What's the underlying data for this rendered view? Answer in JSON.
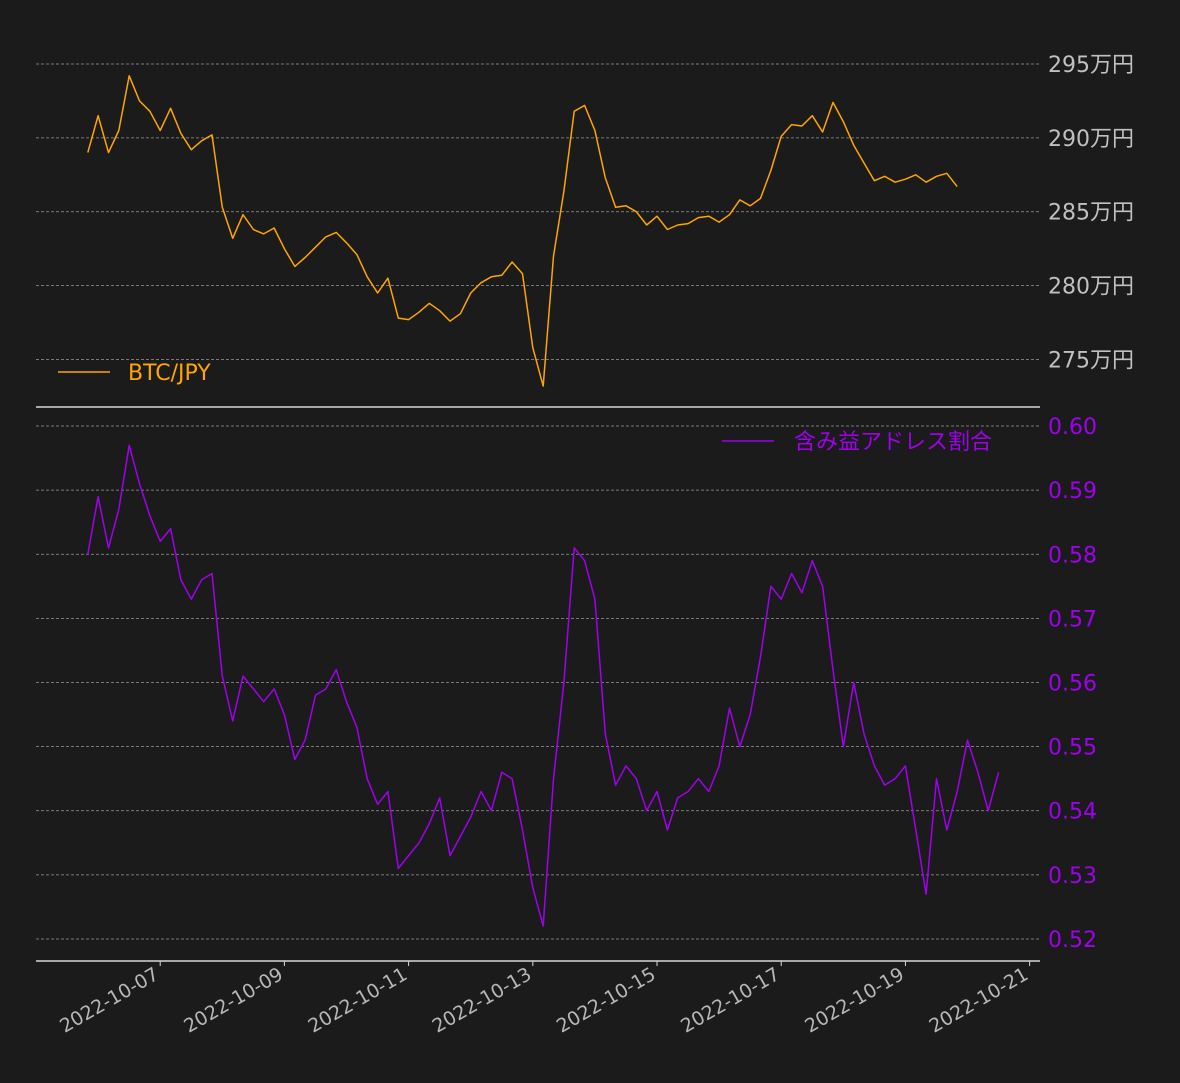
{
  "colors": {
    "background": "#1b1b1b",
    "btc_line": "#ffa500",
    "ratio_line": "#a000ee",
    "top_tick_text": "#c0c0c0",
    "bottom_tick_text": "#a000ee",
    "grid": "#9a9a9a",
    "axis": "#d8d8d8"
  },
  "chart_data": [
    {
      "type": "line",
      "panel": "top",
      "title": "",
      "ylabel": "",
      "ylim": [
        272.8,
        297.3
      ],
      "y_ticks": [
        275,
        280,
        285,
        290,
        295
      ],
      "y_tick_labels": [
        "275万円",
        "280万円",
        "285万円",
        "290万円",
        "295万円"
      ],
      "grid": true,
      "legend_position": "bottom-left",
      "series": [
        {
          "name": "BTC/JPY",
          "color": "#ffa500",
          "x": [
            "2022-10-05 20:00",
            "2022-10-06 00:00",
            "2022-10-06 04:00",
            "2022-10-06 08:00",
            "2022-10-06 12:00",
            "2022-10-06 16:00",
            "2022-10-06 20:00",
            "2022-10-07 00:00",
            "2022-10-07 04:00",
            "2022-10-07 08:00",
            "2022-10-07 12:00",
            "2022-10-07 16:00",
            "2022-10-07 20:00",
            "2022-10-08 00:00",
            "2022-10-08 04:00",
            "2022-10-08 08:00",
            "2022-10-08 12:00",
            "2022-10-08 16:00",
            "2022-10-08 20:00",
            "2022-10-09 00:00",
            "2022-10-09 04:00",
            "2022-10-09 08:00",
            "2022-10-09 12:00",
            "2022-10-09 16:00",
            "2022-10-09 20:00",
            "2022-10-10 00:00",
            "2022-10-10 04:00",
            "2022-10-10 08:00",
            "2022-10-10 12:00",
            "2022-10-10 16:00",
            "2022-10-10 20:00",
            "2022-10-11 00:00",
            "2022-10-11 04:00",
            "2022-10-11 08:00",
            "2022-10-11 12:00",
            "2022-10-11 16:00",
            "2022-10-11 20:00",
            "2022-10-12 00:00",
            "2022-10-12 04:00",
            "2022-10-12 08:00",
            "2022-10-12 12:00",
            "2022-10-12 16:00",
            "2022-10-12 20:00",
            "2022-10-13 00:00",
            "2022-10-13 04:00",
            "2022-10-13 08:00",
            "2022-10-13 12:00",
            "2022-10-13 16:00",
            "2022-10-13 20:00",
            "2022-10-14 00:00",
            "2022-10-14 04:00",
            "2022-10-14 08:00",
            "2022-10-14 12:00",
            "2022-10-14 16:00",
            "2022-10-14 20:00",
            "2022-10-15 00:00",
            "2022-10-15 04:00",
            "2022-10-15 08:00",
            "2022-10-15 12:00",
            "2022-10-15 16:00",
            "2022-10-15 20:00",
            "2022-10-16 00:00",
            "2022-10-16 04:00",
            "2022-10-16 08:00",
            "2022-10-16 12:00",
            "2022-10-16 16:00",
            "2022-10-16 20:00",
            "2022-10-17 00:00",
            "2022-10-17 04:00",
            "2022-10-17 08:00",
            "2022-10-17 12:00",
            "2022-10-17 16:00",
            "2022-10-17 20:00",
            "2022-10-18 00:00",
            "2022-10-18 04:00",
            "2022-10-18 08:00",
            "2022-10-18 12:00",
            "2022-10-18 16:00",
            "2022-10-18 20:00",
            "2022-10-19 00:00",
            "2022-10-19 04:00",
            "2022-10-19 08:00",
            "2022-10-19 12:00",
            "2022-10-19 16:00",
            "2022-10-19 20:00"
          ],
          "values": [
            289.0,
            291.5,
            289.0,
            290.5,
            294.2,
            292.5,
            291.8,
            290.5,
            292.0,
            290.3,
            289.2,
            289.8,
            290.2,
            285.3,
            283.2,
            284.8,
            283.8,
            283.5,
            283.9,
            282.5,
            281.3,
            281.9,
            282.6,
            283.3,
            283.6,
            282.9,
            282.1,
            280.6,
            279.5,
            280.5,
            277.8,
            277.7,
            278.2,
            278.8,
            278.3,
            277.6,
            278.1,
            279.5,
            280.2,
            280.6,
            280.7,
            281.6,
            280.8,
            275.8,
            273.2,
            282.0,
            286.4,
            291.8,
            292.2,
            290.5,
            287.3,
            285.3,
            285.4,
            285.0,
            284.1,
            284.7,
            283.8,
            284.1,
            284.2,
            284.6,
            284.7,
            284.3,
            284.8,
            285.8,
            285.4,
            285.9,
            287.8,
            290.1,
            290.9,
            290.8,
            291.5,
            290.4,
            292.4,
            291.1,
            289.5,
            288.3,
            287.1,
            287.4,
            287.0,
            287.2,
            287.5,
            287.0,
            287.4,
            287.6,
            286.7
          ]
        }
      ]
    },
    {
      "type": "line",
      "panel": "bottom",
      "title": "",
      "xlabel": "",
      "ylabel": "",
      "ylim": [
        0.5175,
        0.6025
      ],
      "y_ticks": [
        0.52,
        0.53,
        0.54,
        0.55,
        0.56,
        0.57,
        0.58,
        0.59,
        0.6
      ],
      "y_tick_labels": [
        "0.52",
        "0.53",
        "0.54",
        "0.55",
        "0.56",
        "0.57",
        "0.58",
        "0.59",
        "0.60"
      ],
      "x_ticks": [
        "2022-10-07",
        "2022-10-09",
        "2022-10-11",
        "2022-10-13",
        "2022-10-15",
        "2022-10-17",
        "2022-10-19",
        "2022-10-21"
      ],
      "x_tick_labels": [
        "2022-10-07",
        "2022-10-09",
        "2022-10-11",
        "2022-10-13",
        "2022-10-15",
        "2022-10-17",
        "2022-10-19",
        "2022-10-21"
      ],
      "xlim": [
        "2022-10-05 00:00",
        "2022-10-21 04:00"
      ],
      "grid": true,
      "legend_position": "top-right",
      "series": [
        {
          "name": "含み益アドレス割合",
          "color": "#a000ee",
          "x": [
            "2022-10-05 20:00",
            "2022-10-06 00:00",
            "2022-10-06 04:00",
            "2022-10-06 08:00",
            "2022-10-06 12:00",
            "2022-10-06 16:00",
            "2022-10-06 20:00",
            "2022-10-07 00:00",
            "2022-10-07 04:00",
            "2022-10-07 08:00",
            "2022-10-07 12:00",
            "2022-10-07 16:00",
            "2022-10-07 20:00",
            "2022-10-08 00:00",
            "2022-10-08 04:00",
            "2022-10-08 08:00",
            "2022-10-08 12:00",
            "2022-10-08 16:00",
            "2022-10-08 20:00",
            "2022-10-09 00:00",
            "2022-10-09 04:00",
            "2022-10-09 08:00",
            "2022-10-09 12:00",
            "2022-10-09 16:00",
            "2022-10-09 20:00",
            "2022-10-10 00:00",
            "2022-10-10 04:00",
            "2022-10-10 08:00",
            "2022-10-10 12:00",
            "2022-10-10 16:00",
            "2022-10-10 20:00",
            "2022-10-11 00:00",
            "2022-10-11 04:00",
            "2022-10-11 08:00",
            "2022-10-11 12:00",
            "2022-10-11 16:00",
            "2022-10-11 20:00",
            "2022-10-12 00:00",
            "2022-10-12 04:00",
            "2022-10-12 08:00",
            "2022-10-12 12:00",
            "2022-10-12 16:00",
            "2022-10-12 20:00",
            "2022-10-13 00:00",
            "2022-10-13 04:00",
            "2022-10-13 08:00",
            "2022-10-13 12:00",
            "2022-10-13 16:00",
            "2022-10-13 20:00",
            "2022-10-14 00:00",
            "2022-10-14 04:00",
            "2022-10-14 08:00",
            "2022-10-14 12:00",
            "2022-10-14 16:00",
            "2022-10-14 20:00",
            "2022-10-15 00:00",
            "2022-10-15 04:00",
            "2022-10-15 08:00",
            "2022-10-15 12:00",
            "2022-10-15 16:00",
            "2022-10-15 20:00",
            "2022-10-16 00:00",
            "2022-10-16 04:00",
            "2022-10-16 08:00",
            "2022-10-16 12:00",
            "2022-10-16 16:00",
            "2022-10-16 20:00",
            "2022-10-17 00:00",
            "2022-10-17 04:00",
            "2022-10-17 08:00",
            "2022-10-17 12:00",
            "2022-10-17 16:00",
            "2022-10-17 20:00",
            "2022-10-18 00:00",
            "2022-10-18 04:00",
            "2022-10-18 08:00",
            "2022-10-18 12:00",
            "2022-10-18 16:00",
            "2022-10-18 20:00",
            "2022-10-19 00:00",
            "2022-10-19 04:00",
            "2022-10-19 08:00",
            "2022-10-19 12:00",
            "2022-10-19 16:00",
            "2022-10-19 20:00",
            "2022-10-20 00:00",
            "2022-10-20 04:00",
            "2022-10-20 08:00",
            "2022-10-20 12:00"
          ],
          "values": [
            0.58,
            0.589,
            0.581,
            0.587,
            0.597,
            0.591,
            0.586,
            0.582,
            0.584,
            0.576,
            0.573,
            0.576,
            0.577,
            0.561,
            0.554,
            0.561,
            0.559,
            0.557,
            0.559,
            0.555,
            0.548,
            0.551,
            0.558,
            0.559,
            0.562,
            0.557,
            0.553,
            0.545,
            0.541,
            0.543,
            0.531,
            0.533,
            0.535,
            0.538,
            0.542,
            0.533,
            0.536,
            0.539,
            0.543,
            0.54,
            0.546,
            0.545,
            0.537,
            0.528,
            0.522,
            0.545,
            0.56,
            0.581,
            0.579,
            0.573,
            0.552,
            0.544,
            0.547,
            0.545,
            0.54,
            0.543,
            0.537,
            0.542,
            0.543,
            0.545,
            0.543,
            0.547,
            0.556,
            0.55,
            0.555,
            0.564,
            0.575,
            0.573,
            0.577,
            0.574,
            0.579,
            0.575,
            0.562,
            0.55,
            0.56,
            0.552,
            0.547,
            0.544,
            0.545,
            0.547,
            0.537,
            0.527,
            0.545,
            0.537,
            0.543,
            0.551,
            0.546,
            0.54,
            0.546
          ]
        }
      ]
    }
  ]
}
